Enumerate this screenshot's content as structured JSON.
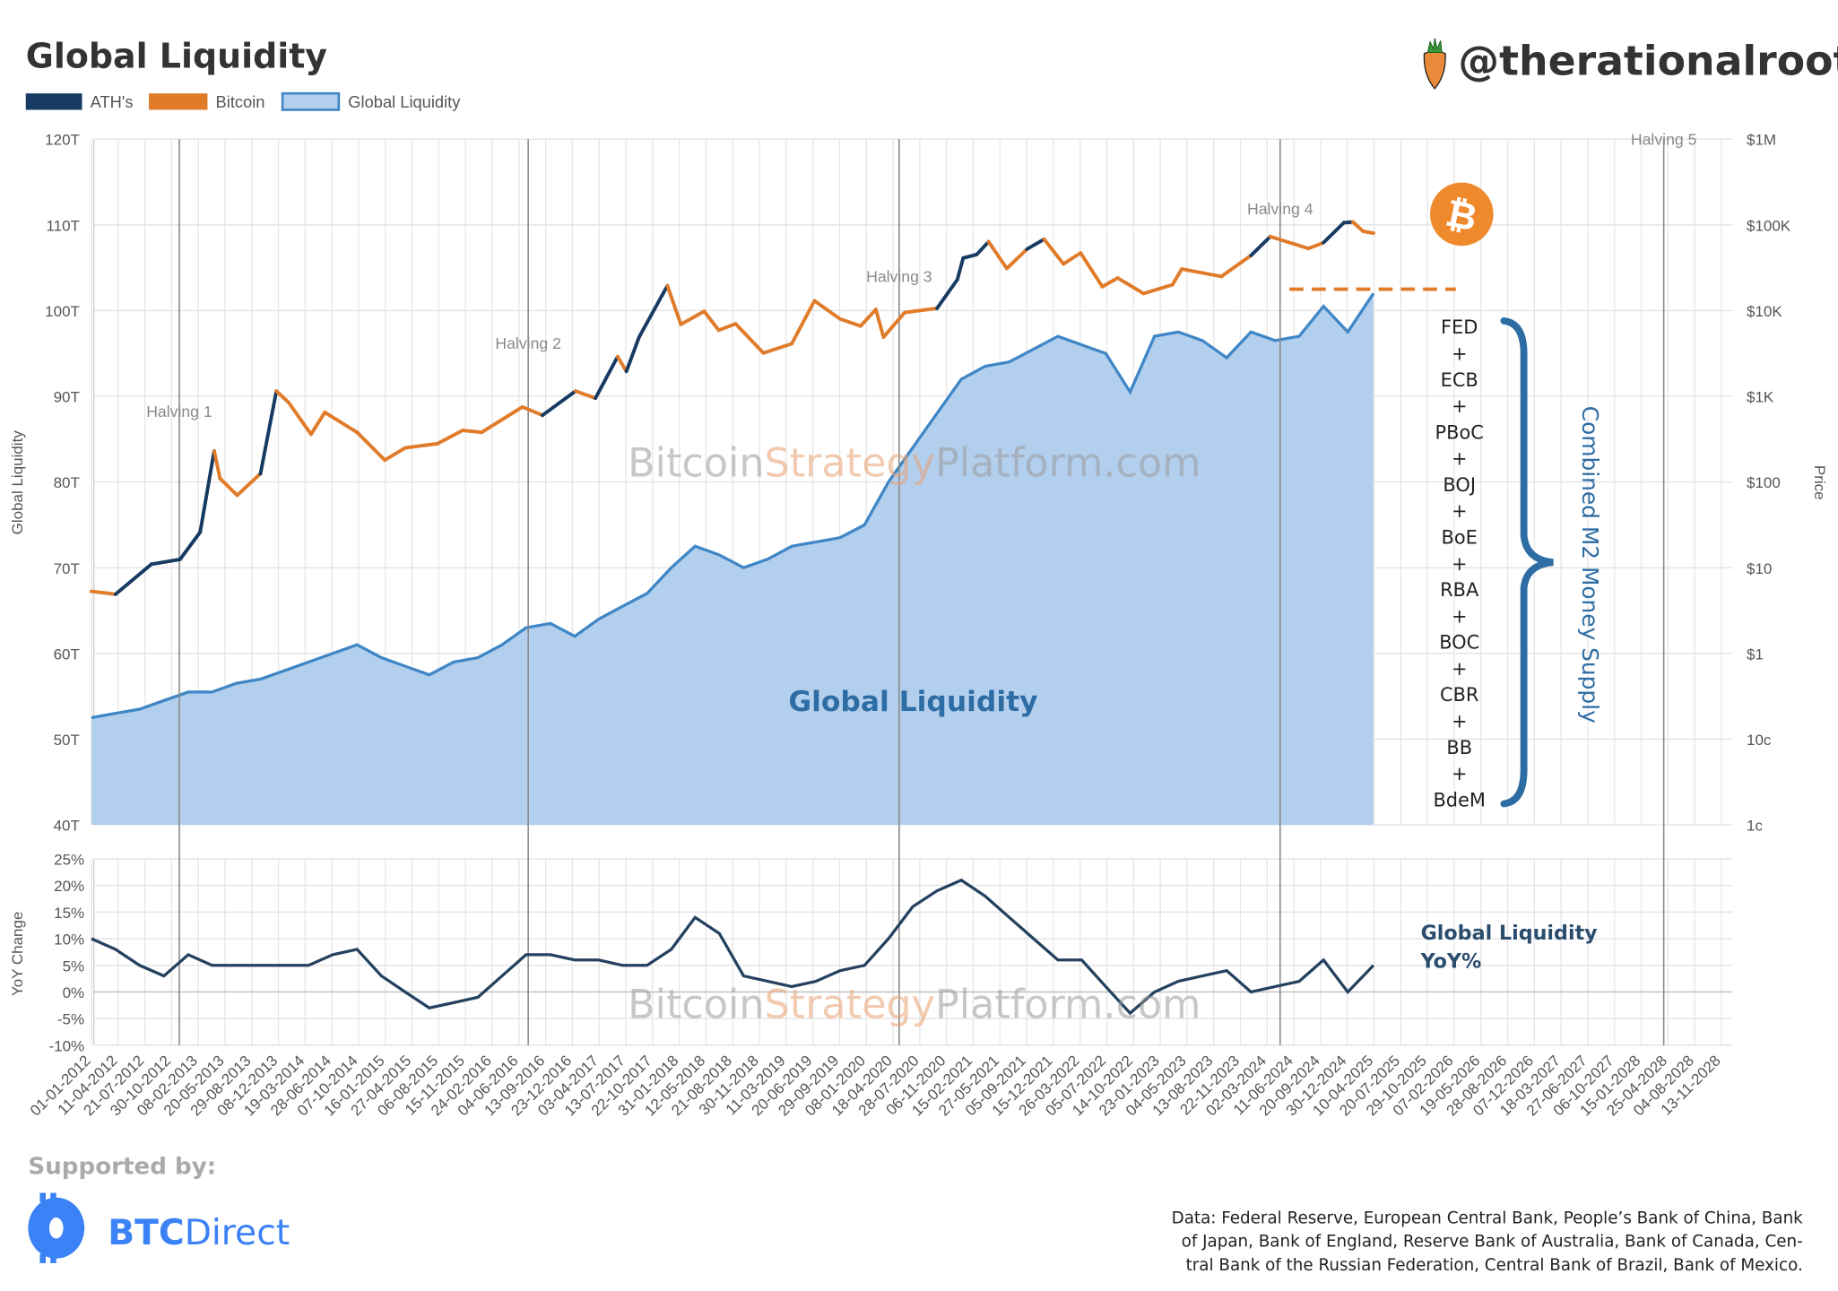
{
  "header": {
    "title": "Global Liquidity",
    "handle": "@therationalroot",
    "carrot_icon": "carrot-icon",
    "bitcoin_icon": "bitcoin-icon"
  },
  "legend": [
    {
      "label": "ATH's",
      "color": "#173a63"
    },
    {
      "label": "Bitcoin",
      "color": "#e07b2a"
    },
    {
      "label": "Global Liquidity",
      "color": "#b3cfee",
      "border": "#3f86c6"
    }
  ],
  "annotations": {
    "watermark_a": "Bitcoin",
    "watermark_b": "Strategy",
    "watermark_c": "Platform.com",
    "area_label": "Global Liquidity",
    "yoy_label_1": "Global Liquidity",
    "yoy_label_2": "YoY%",
    "m2_label": "Combined M2 Money Supply",
    "central_banks": [
      "FED",
      "+",
      "ECB",
      "+",
      "PBoC",
      "+",
      "BOJ",
      "+",
      "BoE",
      "+",
      "RBA",
      "+",
      "BOC",
      "+",
      "CBR",
      "+",
      "BB",
      "+",
      "BdeM"
    ]
  },
  "footer": {
    "supported_by": "Supported by:",
    "sponsor_a": "BTC",
    "sponsor_b": "Direct",
    "source_lines": [
      "Data: Federal Reserve, European Central Bank, People’s Bank of China, Bank",
      "of Japan, Bank of England, Reserve Bank of Australia, Bank of Canada, Cen-",
      "tral Bank of the Russian Federation, Central Bank of Brazil, Bank of Mexico."
    ]
  },
  "chart_data": [
    {
      "type": "area",
      "ylabel": "Global Liquidity",
      "ylabel_right": "Price",
      "ylim": [
        40,
        120
      ],
      "yticks": [
        "120T",
        "110T",
        "100T",
        "90T",
        "80T",
        "70T",
        "60T",
        "50T",
        "40T"
      ],
      "yticks_right": [
        "$1M",
        "$100K",
        "$10K",
        "$1K",
        "$100",
        "$10",
        "$1",
        "10c",
        "1c"
      ],
      "y_right_scale": "log",
      "y_right_lim": [
        0.01,
        1000000
      ],
      "grid": true,
      "legend_placement": "top-left",
      "halvings": [
        {
          "label": "Halving 1",
          "date": "2012-11-28"
        },
        {
          "label": "Halving 2",
          "date": "2016-07-09"
        },
        {
          "label": "Halving 3",
          "date": "2020-05-11"
        },
        {
          "label": "Halving 4",
          "date": "2024-04-20"
        },
        {
          "label": "Halving 5",
          "date": "2028-04-09"
        }
      ],
      "series": [
        {
          "name": "Global Liquidity",
          "color": "#3f86c6",
          "fill": "#b3cfee",
          "unit": "T",
          "points": [
            [
              "2012-01-01",
              52.5
            ],
            [
              "2012-04-01",
              53
            ],
            [
              "2012-07-01",
              53.5
            ],
            [
              "2012-10-01",
              54.5
            ],
            [
              "2013-01-01",
              55.5
            ],
            [
              "2013-04-01",
              55.5
            ],
            [
              "2013-07-01",
              56.5
            ],
            [
              "2013-10-01",
              57
            ],
            [
              "2014-01-01",
              58
            ],
            [
              "2014-04-01",
              59
            ],
            [
              "2014-07-01",
              60
            ],
            [
              "2014-10-01",
              61
            ],
            [
              "2015-01-01",
              59.5
            ],
            [
              "2015-04-01",
              58.5
            ],
            [
              "2015-07-01",
              57.5
            ],
            [
              "2015-10-01",
              59
            ],
            [
              "2016-01-01",
              59.5
            ],
            [
              "2016-04-01",
              61
            ],
            [
              "2016-07-01",
              63
            ],
            [
              "2016-10-01",
              63.5
            ],
            [
              "2017-01-01",
              62
            ],
            [
              "2017-04-01",
              64
            ],
            [
              "2017-07-01",
              65.5
            ],
            [
              "2017-10-01",
              67
            ],
            [
              "2018-01-01",
              70
            ],
            [
              "2018-04-01",
              72.5
            ],
            [
              "2018-07-01",
              71.5
            ],
            [
              "2018-10-01",
              70
            ],
            [
              "2019-01-01",
              71
            ],
            [
              "2019-04-01",
              72.5
            ],
            [
              "2019-07-01",
              73
            ],
            [
              "2019-10-01",
              73.5
            ],
            [
              "2020-01-01",
              75
            ],
            [
              "2020-04-01",
              80
            ],
            [
              "2020-07-01",
              84
            ],
            [
              "2020-10-01",
              88
            ],
            [
              "2021-01-01",
              92
            ],
            [
              "2021-04-01",
              93.5
            ],
            [
              "2021-07-01",
              94
            ],
            [
              "2021-10-01",
              95.5
            ],
            [
              "2022-01-01",
              97
            ],
            [
              "2022-04-01",
              96
            ],
            [
              "2022-07-01",
              95
            ],
            [
              "2022-10-01",
              90.5
            ],
            [
              "2023-01-01",
              97
            ],
            [
              "2023-04-01",
              97.5
            ],
            [
              "2023-07-01",
              96.5
            ],
            [
              "2023-10-01",
              94.5
            ],
            [
              "2024-01-01",
              97.5
            ],
            [
              "2024-04-01",
              96.5
            ],
            [
              "2024-07-01",
              97
            ],
            [
              "2024-10-01",
              100.5
            ],
            [
              "2025-01-01",
              97.5
            ],
            [
              "2025-04-08",
              102
            ]
          ]
        },
        {
          "name": "Bitcoin",
          "color": "#e07b2a",
          "ath_color": "#173a63",
          "axis": "right",
          "points": [
            [
              "2012-01-01",
              5.3
            ],
            [
              "2012-04-01",
              4.9
            ],
            [
              "2012-08-15",
              11
            ],
            [
              "2012-12-01",
              12.5
            ],
            [
              "2013-02-15",
              26
            ],
            [
              "2013-04-09",
              230
            ],
            [
              "2013-05-01",
              110
            ],
            [
              "2013-07-05",
              70
            ],
            [
              "2013-10-01",
              125
            ],
            [
              "2013-11-30",
              1150
            ],
            [
              "2014-01-15",
              850
            ],
            [
              "2014-04-10",
              360
            ],
            [
              "2014-06-01",
              650
            ],
            [
              "2014-10-01",
              380
            ],
            [
              "2015-01-14",
              180
            ],
            [
              "2015-04-01",
              250
            ],
            [
              "2015-08-01",
              280
            ],
            [
              "2015-11-04",
              400
            ],
            [
              "2016-01-15",
              380
            ],
            [
              "2016-06-17",
              750
            ],
            [
              "2016-09-01",
              600
            ],
            [
              "2017-01-04",
              1150
            ],
            [
              "2017-03-20",
              950
            ],
            [
              "2017-06-12",
              2900
            ],
            [
              "2017-07-15",
              1950
            ],
            [
              "2017-09-01",
              4900
            ],
            [
              "2017-12-17",
              19500
            ],
            [
              "2018-02-06",
              6900
            ],
            [
              "2018-05-05",
              9800
            ],
            [
              "2018-06-29",
              5900
            ],
            [
              "2018-09-01",
              7000
            ],
            [
              "2018-12-15",
              3200
            ],
            [
              "2019-04-01",
              4100
            ],
            [
              "2019-06-26",
              13000
            ],
            [
              "2019-09-30",
              8000
            ],
            [
              "2019-12-17",
              6600
            ],
            [
              "2020-02-13",
              10300
            ],
            [
              "2020-03-13",
              4900
            ],
            [
              "2020-06-01",
              9500
            ],
            [
              "2020-10-01",
              10600
            ],
            [
              "2020-12-17",
              23000
            ],
            [
              "2021-01-08",
              41000
            ],
            [
              "2021-02-28",
              45000
            ],
            [
              "2021-04-14",
              63500
            ],
            [
              "2021-06-22",
              31000
            ],
            [
              "2021-09-06",
              52000
            ],
            [
              "2021-11-10",
              68000
            ],
            [
              "2022-01-22",
              35000
            ],
            [
              "2022-03-28",
              47000
            ],
            [
              "2022-06-18",
              19000
            ],
            [
              "2022-08-15",
              24000
            ],
            [
              "2022-11-21",
              15800
            ],
            [
              "2023-03-10",
              20000
            ],
            [
              "2023-04-14",
              30500
            ],
            [
              "2023-09-11",
              25000
            ],
            [
              "2024-01-01",
              44000
            ],
            [
              "2024-03-14",
              73000
            ],
            [
              "2024-08-05",
              53000
            ],
            [
              "2024-10-01",
              62000
            ],
            [
              "2024-12-17",
              106000
            ],
            [
              "2025-01-20",
              108000
            ],
            [
              "2025-02-28",
              84000
            ],
            [
              "2025-04-08",
              80000
            ]
          ]
        }
      ]
    },
    {
      "type": "line",
      "ylabel": "YoY Change",
      "ylim": [
        -10,
        25
      ],
      "yticks": [
        "25%",
        "20%",
        "15%",
        "10%",
        "5%",
        "0%",
        "-5%",
        "-10%"
      ],
      "series": [
        {
          "name": "Global Liquidity YoY%",
          "color": "#24415f",
          "points": [
            [
              "2012-01-01",
              10
            ],
            [
              "2012-04-01",
              8
            ],
            [
              "2012-07-01",
              5
            ],
            [
              "2012-10-01",
              3
            ],
            [
              "2013-01-01",
              7
            ],
            [
              "2013-04-01",
              5
            ],
            [
              "2013-07-01",
              5
            ],
            [
              "2013-10-01",
              5
            ],
            [
              "2014-01-01",
              5
            ],
            [
              "2014-04-01",
              5
            ],
            [
              "2014-07-01",
              7
            ],
            [
              "2014-10-01",
              8
            ],
            [
              "2015-01-01",
              3
            ],
            [
              "2015-04-01",
              0
            ],
            [
              "2015-07-01",
              -3
            ],
            [
              "2015-10-01",
              -2
            ],
            [
              "2016-01-01",
              -1
            ],
            [
              "2016-04-01",
              3
            ],
            [
              "2016-07-01",
              7
            ],
            [
              "2016-10-01",
              7
            ],
            [
              "2017-01-01",
              6
            ],
            [
              "2017-04-01",
              6
            ],
            [
              "2017-07-01",
              5
            ],
            [
              "2017-10-01",
              5
            ],
            [
              "2018-01-01",
              8
            ],
            [
              "2018-04-01",
              14
            ],
            [
              "2018-07-01",
              11
            ],
            [
              "2018-10-01",
              3
            ],
            [
              "2019-01-01",
              2
            ],
            [
              "2019-04-01",
              1
            ],
            [
              "2019-07-01",
              2
            ],
            [
              "2019-10-01",
              4
            ],
            [
              "2020-01-01",
              5
            ],
            [
              "2020-04-01",
              10
            ],
            [
              "2020-07-01",
              16
            ],
            [
              "2020-10-01",
              19
            ],
            [
              "2021-01-01",
              21
            ],
            [
              "2021-04-01",
              18
            ],
            [
              "2021-07-01",
              14
            ],
            [
              "2021-10-01",
              10
            ],
            [
              "2022-01-01",
              6
            ],
            [
              "2022-04-01",
              6
            ],
            [
              "2022-07-01",
              1
            ],
            [
              "2022-10-01",
              -4
            ],
            [
              "2023-01-01",
              0
            ],
            [
              "2023-04-01",
              2
            ],
            [
              "2023-07-01",
              3
            ],
            [
              "2023-10-01",
              4
            ],
            [
              "2024-01-01",
              0
            ],
            [
              "2024-04-01",
              1
            ],
            [
              "2024-07-01",
              2
            ],
            [
              "2024-10-01",
              6
            ],
            [
              "2025-01-01",
              0
            ],
            [
              "2025-04-08",
              5
            ]
          ]
        }
      ]
    }
  ],
  "x_axis": {
    "tick_labels": [
      "01-01-2012",
      "11-04-2012",
      "21-07-2012",
      "30-10-2012",
      "08-02-2013",
      "20-05-2013",
      "29-08-2013",
      "08-12-2013",
      "19-03-2014",
      "28-06-2014",
      "07-10-2014",
      "16-01-2015",
      "27-04-2015",
      "06-08-2015",
      "15-11-2015",
      "24-02-2016",
      "04-06-2016",
      "13-09-2016",
      "23-12-2016",
      "03-04-2017",
      "13-07-2017",
      "22-10-2017",
      "31-01-2018",
      "12-05-2018",
      "21-08-2018",
      "30-11-2018",
      "11-03-2019",
      "20-06-2019",
      "29-09-2019",
      "08-01-2020",
      "18-04-2020",
      "28-07-2020",
      "06-11-2020",
      "15-02-2021",
      "27-05-2021",
      "05-09-2021",
      "15-12-2021",
      "26-03-2022",
      "05-07-2022",
      "14-10-2022",
      "23-01-2023",
      "04-05-2023",
      "13-08-2023",
      "22-11-2023",
      "02-03-2024",
      "11-06-2024",
      "20-09-2024",
      "30-12-2024",
      "10-04-2025",
      "20-07-2025",
      "29-10-2025",
      "07-02-2026",
      "19-05-2026",
      "28-08-2026",
      "07-12-2026",
      "18-03-2027",
      "27-06-2027",
      "06-10-2027",
      "15-01-2028",
      "25-04-2028",
      "04-08-2028",
      "13-11-2028"
    ]
  }
}
